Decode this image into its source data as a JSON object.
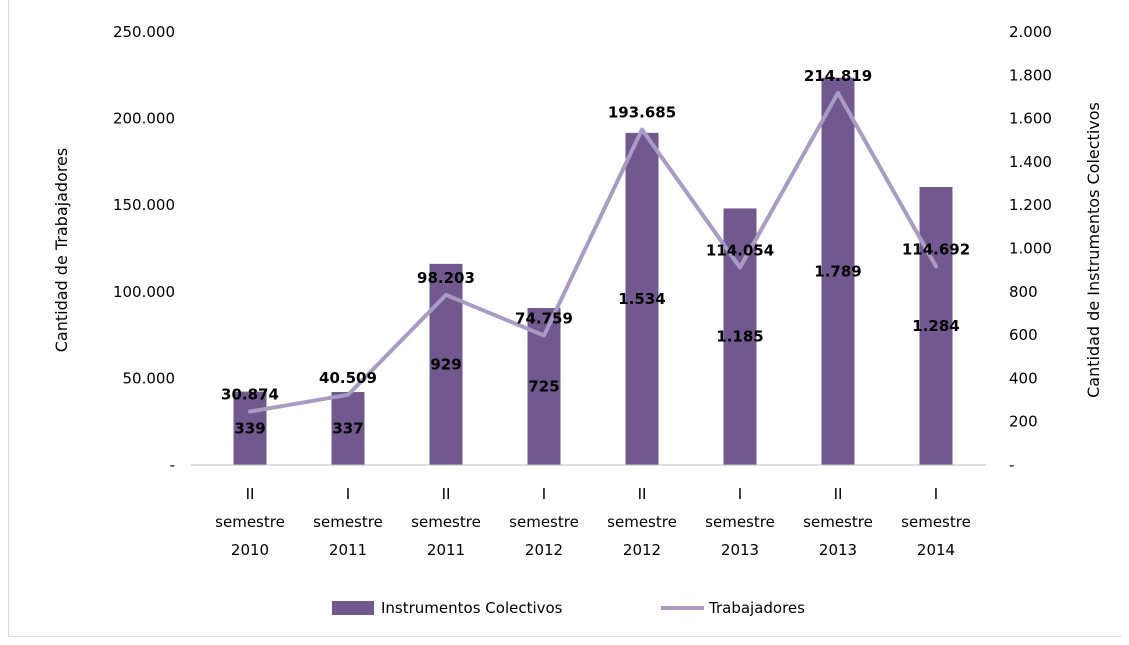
{
  "chart_data": {
    "type": "bar",
    "categories": [
      [
        "II",
        "semestre",
        "2010"
      ],
      [
        "I",
        "semestre",
        "2011"
      ],
      [
        "II",
        "semestre",
        "2011"
      ],
      [
        "I",
        "semestre",
        "2012"
      ],
      [
        "II",
        "semestre",
        "2012"
      ],
      [
        "I",
        "semestre",
        "2013"
      ],
      [
        "II",
        "semestre",
        "2013"
      ],
      [
        "I",
        "semestre",
        "2014"
      ]
    ],
    "series": [
      {
        "name": "Instrumentos Colectivos",
        "type": "bar",
        "axis": "right",
        "values": [
          339,
          337,
          929,
          725,
          1534,
          1185,
          1789,
          1284
        ],
        "labels": [
          "339",
          "337",
          "929",
          "725",
          "1.534",
          "1.185",
          "1.789",
          "1.284"
        ],
        "color": "#71588f"
      },
      {
        "name": "Trabajadores",
        "type": "line",
        "axis": "left",
        "values": [
          30874,
          40509,
          98203,
          74759,
          193685,
          114054,
          214819,
          114692
        ],
        "labels": [
          "30.874",
          "40.509",
          "98.203",
          "74.759",
          "193.685",
          "114.054",
          "214.819",
          "114.692"
        ],
        "color": "#a99bc4"
      }
    ],
    "y_left": {
      "label": "Cantidad de Trabajadores",
      "range": [
        0,
        250000
      ],
      "ticks": [
        0,
        50000,
        100000,
        150000,
        200000,
        250000
      ],
      "tick_labels": [
        "-",
        "50.000",
        "100.000",
        "150.000",
        "200.000",
        "250.000"
      ]
    },
    "y_right": {
      "label": "Cantidad de Instrumentos Colectivos",
      "range": [
        0,
        2000
      ],
      "ticks": [
        0,
        200,
        400,
        600,
        800,
        1000,
        1200,
        1400,
        1600,
        1800,
        2000
      ],
      "tick_labels": [
        "-",
        "200",
        "400",
        "600",
        "800",
        "1.000",
        "1.200",
        "1.400",
        "1.600",
        "1.800",
        "2.000"
      ]
    },
    "grid": false,
    "legend_position": "bottom"
  }
}
